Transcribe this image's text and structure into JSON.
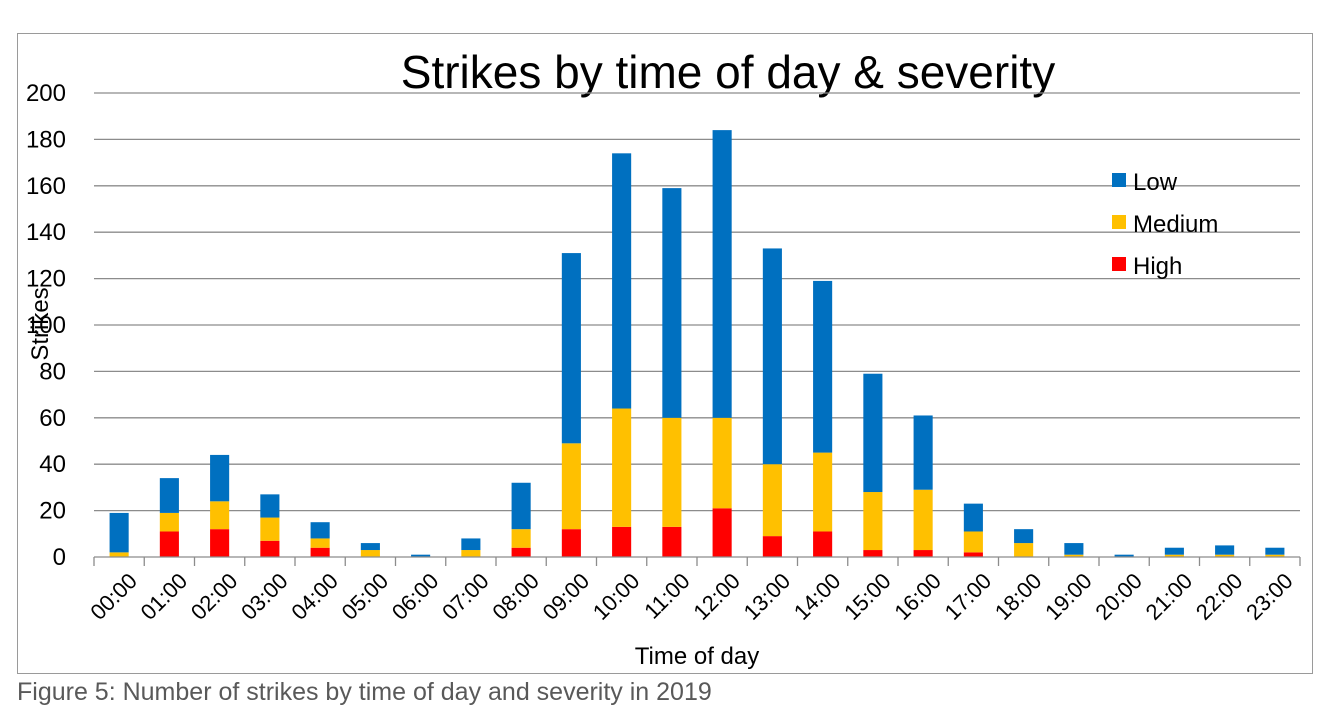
{
  "caption": "Figure 5: Number of strikes by time of day and severity in 2019",
  "chart_data": {
    "type": "bar",
    "stacked": true,
    "title": "Strikes by time of day & severity",
    "xlabel": "Time of day",
    "ylabel": "Strikes",
    "ylim": [
      0,
      200
    ],
    "yticks": [
      0,
      20,
      40,
      60,
      80,
      100,
      120,
      140,
      160,
      180,
      200
    ],
    "grid": true,
    "legend_position": "top-right",
    "categories": [
      "00:00",
      "01:00",
      "02:00",
      "03:00",
      "04:00",
      "05:00",
      "06:00",
      "07:00",
      "08:00",
      "09:00",
      "10:00",
      "11:00",
      "12:00",
      "13:00",
      "14:00",
      "15:00",
      "16:00",
      "17:00",
      "18:00",
      "19:00",
      "20:00",
      "21:00",
      "22:00",
      "23:00"
    ],
    "series": [
      {
        "name": "High",
        "color": "#ff0000",
        "values": [
          0,
          11,
          12,
          7,
          4,
          0,
          0,
          0,
          4,
          12,
          13,
          13,
          21,
          9,
          11,
          3,
          3,
          2,
          0,
          0,
          0,
          0,
          0,
          0
        ]
      },
      {
        "name": "Medium",
        "color": "#ffc000",
        "values": [
          2,
          8,
          12,
          10,
          4,
          3,
          0,
          3,
          8,
          37,
          51,
          47,
          39,
          31,
          34,
          25,
          26,
          9,
          6,
          1,
          0,
          1,
          1,
          1
        ]
      },
      {
        "name": "Low",
        "color": "#0070c0",
        "values": [
          17,
          15,
          20,
          10,
          7,
          3,
          1,
          5,
          20,
          82,
          110,
          99,
          124,
          93,
          74,
          51,
          32,
          12,
          6,
          5,
          1,
          3,
          4,
          3
        ]
      }
    ],
    "legend_order": [
      "Low",
      "Medium",
      "High"
    ]
  }
}
